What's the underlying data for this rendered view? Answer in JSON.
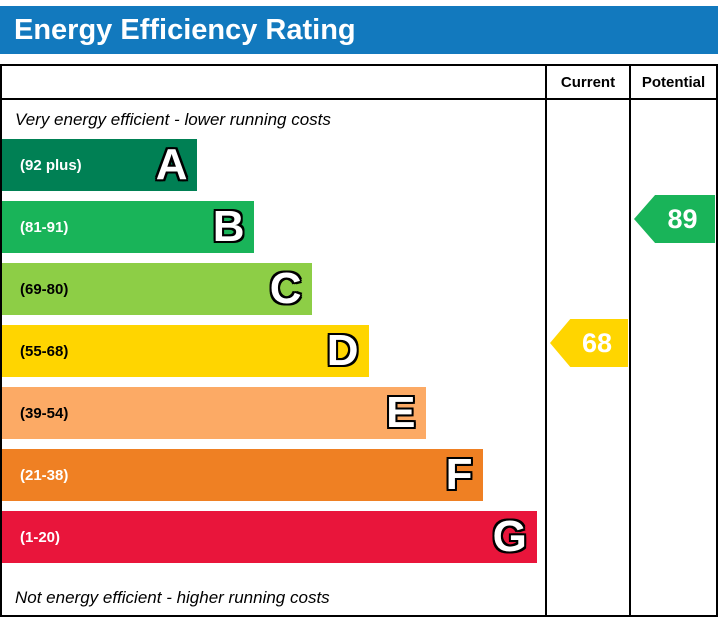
{
  "title": "Energy Efficiency Rating",
  "columns": {
    "current": "Current",
    "potential": "Potential"
  },
  "notes": {
    "top": "Very energy efficient - lower running costs",
    "bottom": "Not energy efficient - higher running costs"
  },
  "chart_data": {
    "type": "bar",
    "subtype": "epc-energy-efficiency-rating",
    "title": "Energy Efficiency Rating",
    "bands": [
      {
        "letter": "A",
        "range": "(92 plus)",
        "color": "#008054",
        "width_pct": 36,
        "label_color": "#ffffff"
      },
      {
        "letter": "B",
        "range": "(81-91)",
        "color": "#19b459",
        "width_pct": 46.5,
        "label_color": "#ffffff"
      },
      {
        "letter": "C",
        "range": "(69-80)",
        "color": "#8dce46",
        "width_pct": 57,
        "label_color": "#000000"
      },
      {
        "letter": "D",
        "range": "(55-68)",
        "color": "#ffd500",
        "width_pct": 67.5,
        "label_color": "#000000"
      },
      {
        "letter": "E",
        "range": "(39-54)",
        "color": "#fcaa65",
        "width_pct": 78,
        "label_color": "#000000"
      },
      {
        "letter": "F",
        "range": "(21-38)",
        "color": "#ef8023",
        "width_pct": 88.5,
        "label_color": "#ffffff"
      },
      {
        "letter": "G",
        "range": "(1-20)",
        "color": "#e9153b",
        "width_pct": 98.5,
        "label_color": "#ffffff"
      }
    ],
    "current": {
      "value": 68,
      "band": "D",
      "color": "#ffd500"
    },
    "potential": {
      "value": 89,
      "band": "B",
      "color": "#19b459"
    }
  }
}
